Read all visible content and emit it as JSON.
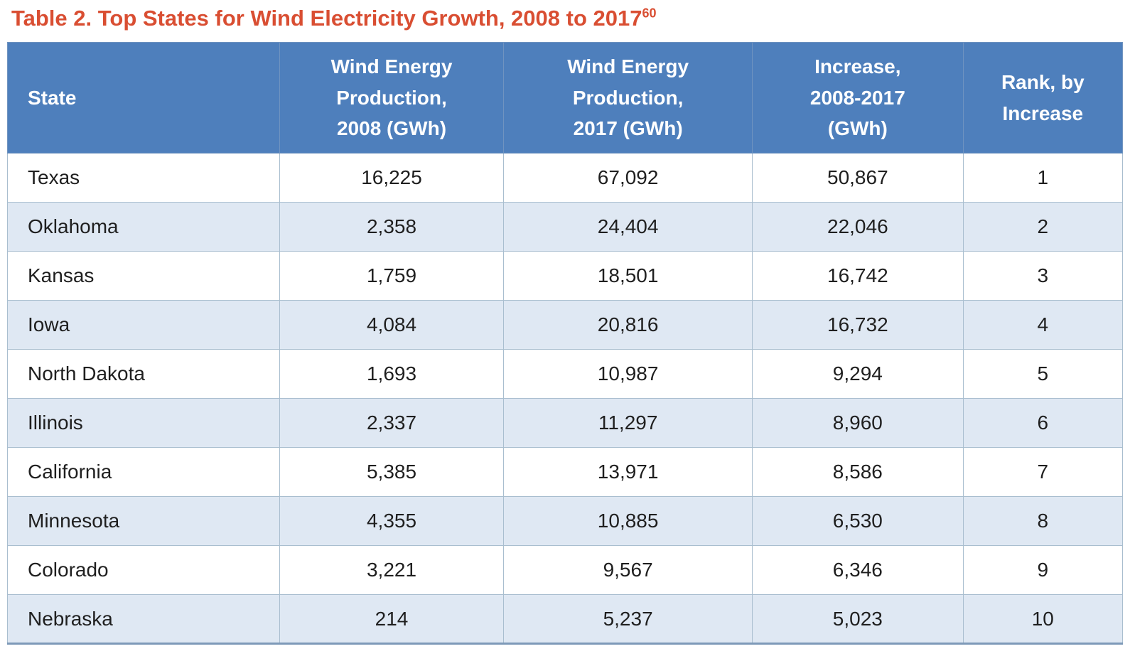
{
  "title": {
    "text": "Table 2. Top States for Wind Electricity Growth, 2008 to 2017",
    "footnote_ref": "60"
  },
  "colors": {
    "title": "#d94e32",
    "header_bg": "#4e7fbc",
    "header_text": "#ffffff",
    "row_alt_bg": "#dfe8f3",
    "row_bg": "#ffffff",
    "border": "#a9becf",
    "bottom_border": "#7e9ab8"
  },
  "table": {
    "headers": [
      {
        "id": "state",
        "lines": [
          "State"
        ]
      },
      {
        "id": "prod2008",
        "lines": [
          "Wind Energy",
          "Production,",
          "2008 (GWh)"
        ]
      },
      {
        "id": "prod2017",
        "lines": [
          "Wind Energy",
          "Production,",
          "2017 (GWh)"
        ]
      },
      {
        "id": "increase",
        "lines": [
          "Increase,",
          "2008-2017",
          "(GWh)"
        ]
      },
      {
        "id": "rank",
        "lines": [
          "Rank, by",
          "Increase"
        ]
      }
    ],
    "rows": [
      {
        "state": "Texas",
        "prod_2008": "16,225",
        "prod_2017": "67,092",
        "increase": "50,867",
        "rank": "1"
      },
      {
        "state": "Oklahoma",
        "prod_2008": "2,358",
        "prod_2017": "24,404",
        "increase": "22,046",
        "rank": "2"
      },
      {
        "state": "Kansas",
        "prod_2008": "1,759",
        "prod_2017": "18,501",
        "increase": "16,742",
        "rank": "3"
      },
      {
        "state": "Iowa",
        "prod_2008": "4,084",
        "prod_2017": "20,816",
        "increase": "16,732",
        "rank": "4"
      },
      {
        "state": "North Dakota",
        "prod_2008": "1,693",
        "prod_2017": "10,987",
        "increase": "9,294",
        "rank": "5"
      },
      {
        "state": "Illinois",
        "prod_2008": "2,337",
        "prod_2017": "11,297",
        "increase": "8,960",
        "rank": "6"
      },
      {
        "state": "California",
        "prod_2008": "5,385",
        "prod_2017": "13,971",
        "increase": "8,586",
        "rank": "7"
      },
      {
        "state": "Minnesota",
        "prod_2008": "4,355",
        "prod_2017": "10,885",
        "increase": "6,530",
        "rank": "8"
      },
      {
        "state": "Colorado",
        "prod_2008": "3,221",
        "prod_2017": "9,567",
        "increase": "6,346",
        "rank": "9"
      },
      {
        "state": "Nebraska",
        "prod_2008": "214",
        "prod_2017": "5,237",
        "increase": "5,023",
        "rank": "10"
      }
    ]
  }
}
